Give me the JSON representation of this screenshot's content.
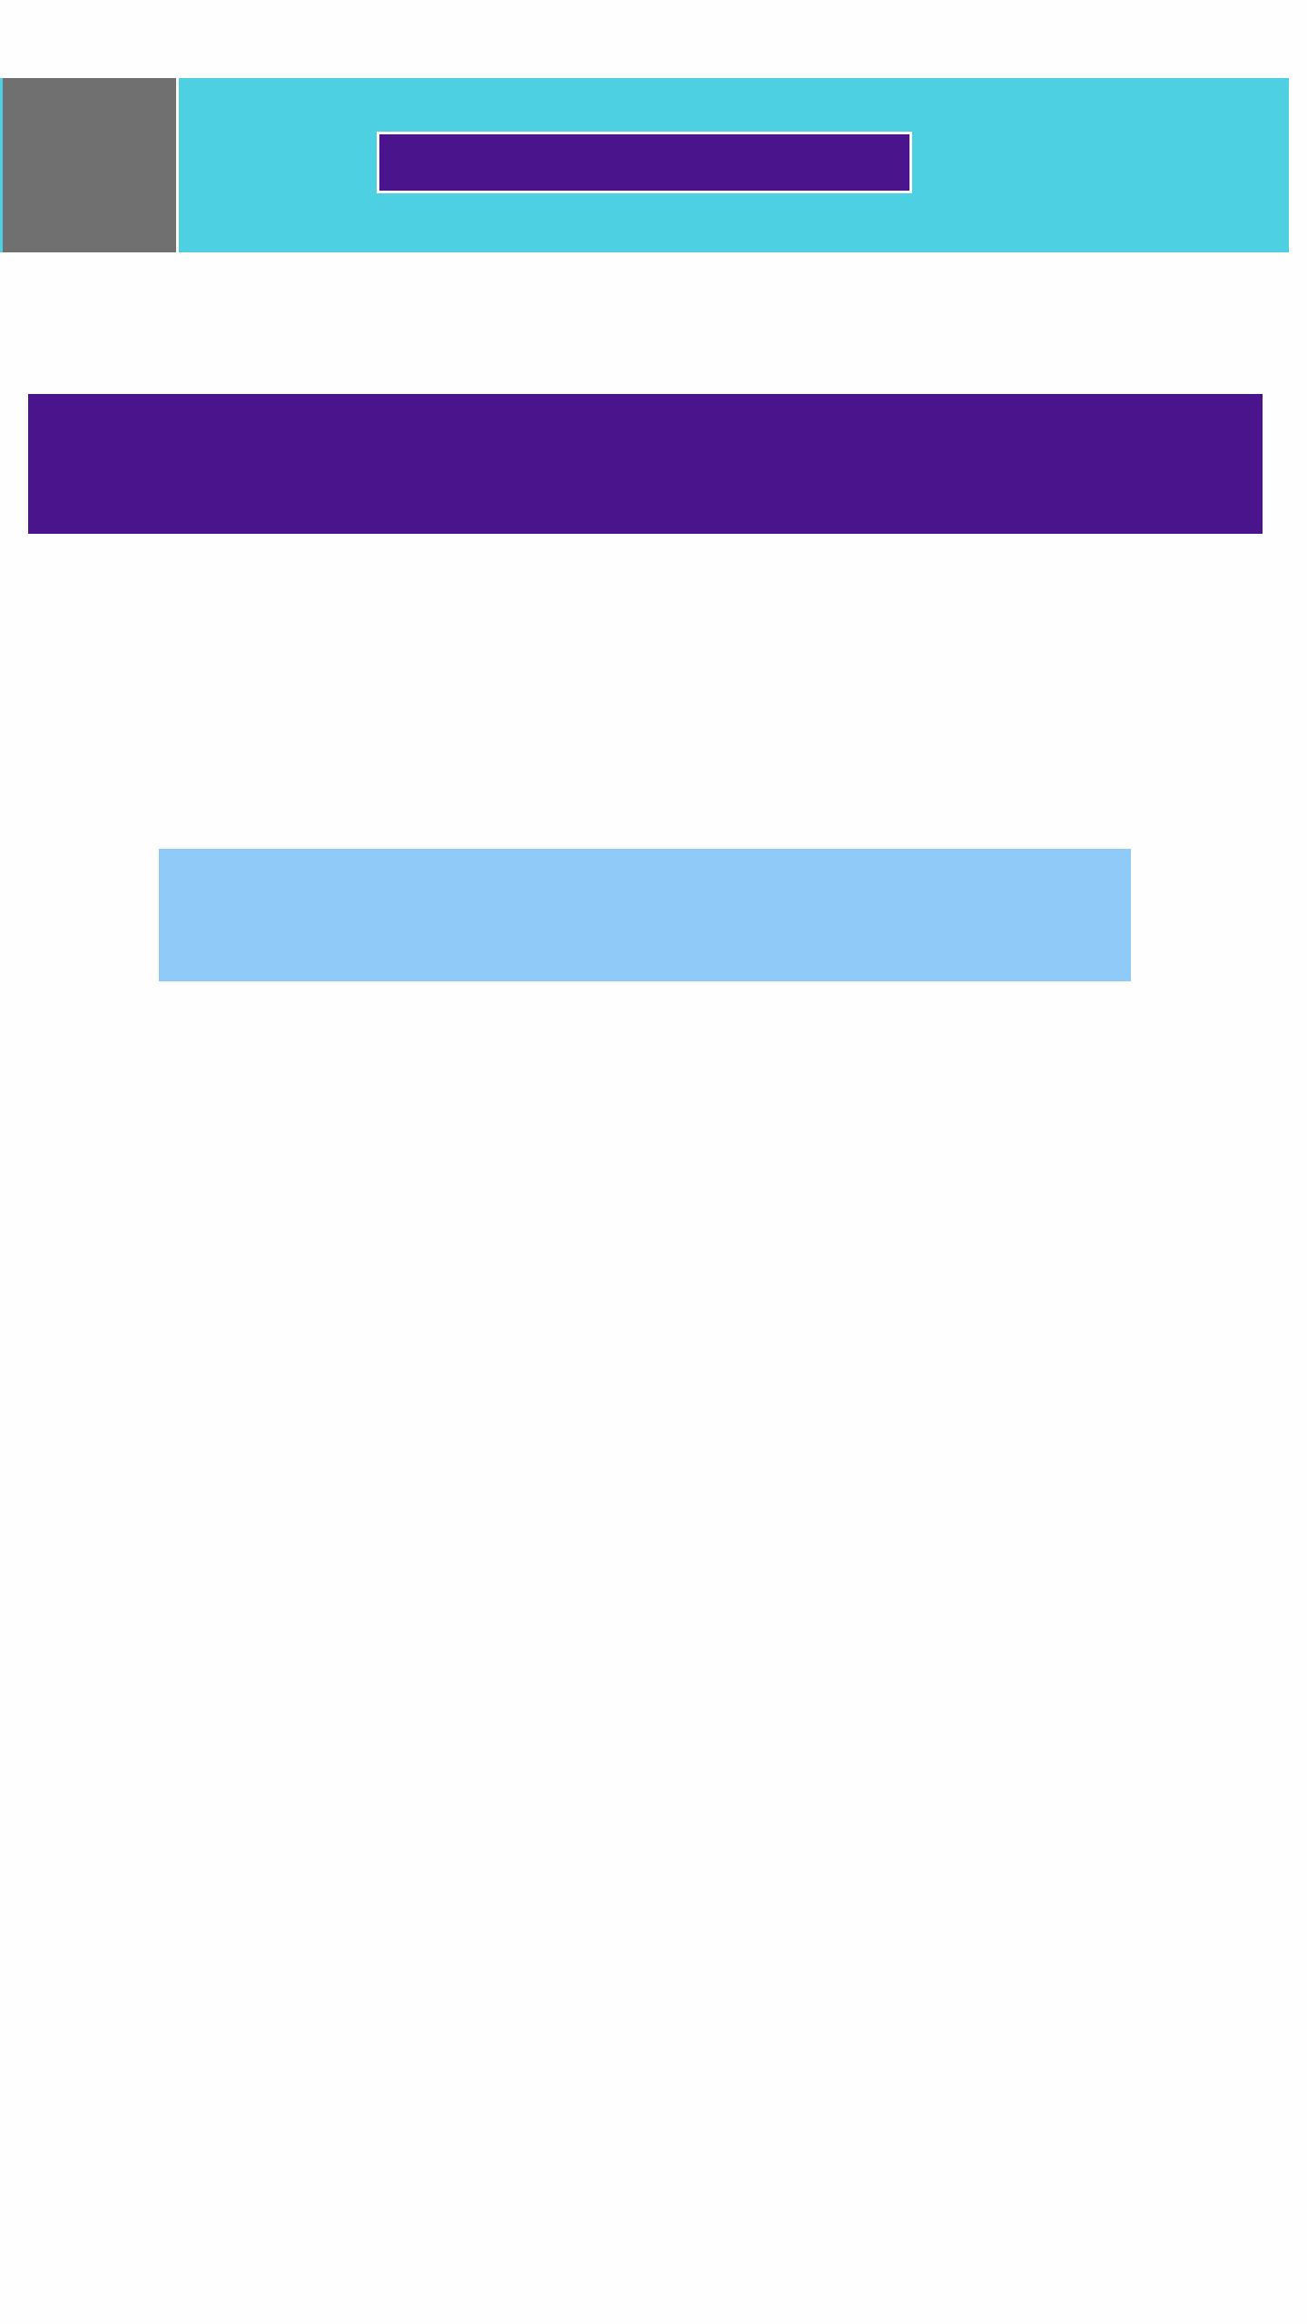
{
  "colors": {
    "background": "#fefefe",
    "header_bar": "#4dd0e1",
    "thumbnail": "#707070",
    "primary": "#4a148c",
    "panel": "#90caf9",
    "border": "#ffffff"
  },
  "header": {
    "button_label": ""
  },
  "banner": {
    "text": ""
  },
  "panel": {
    "text": ""
  }
}
